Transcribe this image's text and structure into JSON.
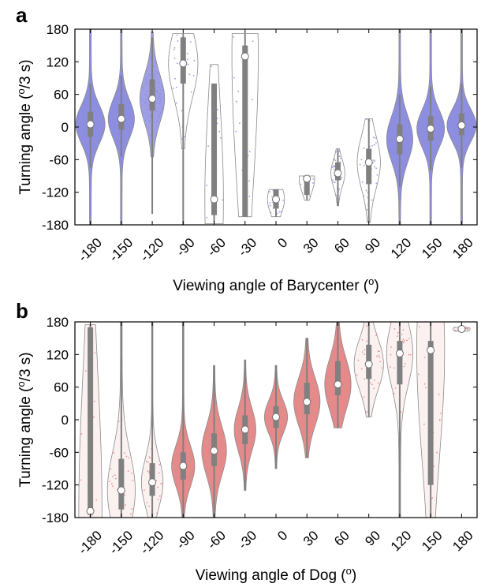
{
  "chart_data": [
    {
      "type": "violin",
      "panel_label": "a",
      "xlabel": "Viewing angle of Barycenter (",
      "xlabel_sup": "o",
      "xlabel_end": ")",
      "ylabel": "Turning angle (",
      "ylabel_sup": "o",
      "ylabel_end": "/3 s)",
      "ylim": [
        -180,
        180
      ],
      "yticks": [
        -180,
        -120,
        -60,
        0,
        60,
        120,
        180
      ],
      "ytick_labels": [
        "-180",
        "-120",
        "-60",
        "0",
        "60",
        "120",
        "180"
      ],
      "categories": [
        "-180",
        "-150",
        "-120",
        "-90",
        "-60",
        "-30",
        "0",
        "30",
        "60",
        "90",
        "120",
        "150",
        "180"
      ],
      "color": "#8e8ee0",
      "groups": [
        {
          "x": "-180",
          "min": -180,
          "max": 180,
          "q1": -18,
          "median": 5,
          "q3": 28,
          "whisker_low": -75,
          "whisker_high": 80,
          "width": 0.95,
          "alpha": 1.0
        },
        {
          "x": "-150",
          "min": -180,
          "max": 180,
          "q1": -5,
          "median": 15,
          "q3": 42,
          "whisker_low": -55,
          "whisker_high": 95,
          "width": 0.85,
          "alpha": 1.0
        },
        {
          "x": "-120",
          "min": -55,
          "max": 175,
          "q1": 30,
          "median": 52,
          "q3": 88,
          "whisker_low": -160,
          "whisker_high": 165,
          "width": 0.8,
          "alpha": 0.85
        },
        {
          "x": "-90",
          "min": -40,
          "max": 172,
          "q1": 80,
          "median": 117,
          "q3": 165,
          "whisker_low": -180,
          "whisker_high": 172,
          "width": 0.95,
          "alpha": 0.0
        },
        {
          "x": "-60",
          "min": -178,
          "max": 115,
          "q1": -162,
          "median": -133,
          "q3": 80,
          "whisker_low": -175,
          "whisker_high": 80,
          "width": 0.6,
          "alpha": 0.0
        },
        {
          "x": "-30",
          "min": -165,
          "max": 172,
          "q1": -165,
          "median": 130,
          "q3": 150,
          "whisker_low": -165,
          "whisker_high": 172,
          "width": 0.85,
          "alpha": 0.0
        },
        {
          "x": "0",
          "min": -165,
          "max": -115,
          "q1": -150,
          "median": -133,
          "q3": -115,
          "whisker_low": -165,
          "whisker_high": -115,
          "width": 0.55,
          "alpha": 0.0
        },
        {
          "x": "30",
          "min": -135,
          "max": -90,
          "q1": -125,
          "median": -95,
          "q3": -92,
          "whisker_low": -135,
          "whisker_high": -90,
          "width": 0.5,
          "alpha": 0.0
        },
        {
          "x": "60",
          "min": -145,
          "max": -40,
          "q1": -98,
          "median": -85,
          "q3": -65,
          "whisker_low": -145,
          "whisker_high": -40,
          "width": 0.45,
          "alpha": 0.0
        },
        {
          "x": "90",
          "min": -175,
          "max": 15,
          "q1": -105,
          "median": -65,
          "q3": -40,
          "whisker_low": -175,
          "whisker_high": 15,
          "width": 0.75,
          "alpha": 0.0
        },
        {
          "x": "120",
          "min": -180,
          "max": 180,
          "q1": -50,
          "median": -22,
          "q3": 5,
          "whisker_low": -110,
          "whisker_high": 60,
          "width": 0.85,
          "alpha": 1.0
        },
        {
          "x": "150",
          "min": -180,
          "max": 180,
          "q1": -25,
          "median": -3,
          "q3": 20,
          "whisker_low": -80,
          "whisker_high": 75,
          "width": 0.9,
          "alpha": 1.0
        },
        {
          "x": "180",
          "min": -180,
          "max": 180,
          "q1": -15,
          "median": 3,
          "q3": 25,
          "whisker_low": -75,
          "whisker_high": 80,
          "width": 0.95,
          "alpha": 1.0
        }
      ]
    },
    {
      "type": "violin",
      "panel_label": "b",
      "xlabel": "Viewing angle of Dog (",
      "xlabel_sup": "o",
      "xlabel_end": ")",
      "ylabel": "Turning angle (",
      "ylabel_sup": "o",
      "ylabel_end": "/3 s)",
      "ylim": [
        -180,
        180
      ],
      "yticks": [
        -180,
        -120,
        -60,
        0,
        60,
        120,
        180
      ],
      "ytick_labels": [
        "-180",
        "-120",
        "-60",
        "0",
        "60",
        "120",
        "180"
      ],
      "categories": [
        "-180",
        "-150",
        "-120",
        "-90",
        "-60",
        "-30",
        "0",
        "30",
        "60",
        "90",
        "120",
        "150",
        "180"
      ],
      "color": "#e58a8a",
      "groups": [
        {
          "x": "-180",
          "min": -180,
          "max": 175,
          "q1": -175,
          "median": -168,
          "q3": 170,
          "whisker_low": -180,
          "whisker_high": 175,
          "width": 0.75,
          "alpha": 0.12
        },
        {
          "x": "-150",
          "min": -180,
          "max": 180,
          "q1": -165,
          "median": -130,
          "q3": -72,
          "whisker_low": -180,
          "whisker_high": 180,
          "width": 0.9,
          "alpha": 0.12
        },
        {
          "x": "-120",
          "min": -180,
          "max": 180,
          "q1": -140,
          "median": -115,
          "q3": -80,
          "whisker_low": -180,
          "whisker_high": 180,
          "width": 0.7,
          "alpha": 0.12
        },
        {
          "x": "-90",
          "min": -180,
          "max": 180,
          "q1": -110,
          "median": -85,
          "q3": -60,
          "whisker_low": -180,
          "whisker_high": 180,
          "width": 0.75,
          "alpha": 1.0
        },
        {
          "x": "-60",
          "min": -180,
          "max": 100,
          "q1": -85,
          "median": -57,
          "q3": -25,
          "whisker_low": -180,
          "whisker_high": 100,
          "width": 0.8,
          "alpha": 1.0
        },
        {
          "x": "-30",
          "min": -130,
          "max": 110,
          "q1": -45,
          "median": -18,
          "q3": 8,
          "whisker_low": -130,
          "whisker_high": 110,
          "width": 0.7,
          "alpha": 1.0
        },
        {
          "x": "0",
          "min": -90,
          "max": 100,
          "q1": -15,
          "median": 5,
          "q3": 25,
          "whisker_low": -90,
          "whisker_high": 100,
          "width": 0.75,
          "alpha": 1.0
        },
        {
          "x": "30",
          "min": -70,
          "max": 150,
          "q1": 10,
          "median": 33,
          "q3": 68,
          "whisker_low": -70,
          "whisker_high": 150,
          "width": 0.85,
          "alpha": 1.0
        },
        {
          "x": "60",
          "min": -15,
          "max": 180,
          "q1": 45,
          "median": 65,
          "q3": 108,
          "whisker_low": -15,
          "whisker_high": 180,
          "width": 0.85,
          "alpha": 1.0
        },
        {
          "x": "90",
          "min": 5,
          "max": 180,
          "q1": 75,
          "median": 102,
          "q3": 138,
          "whisker_low": 5,
          "whisker_high": 180,
          "width": 0.95,
          "alpha": 0.12
        },
        {
          "x": "120",
          "min": -178,
          "max": 180,
          "q1": 65,
          "median": 122,
          "q3": 145,
          "whisker_low": -178,
          "whisker_high": 180,
          "width": 0.85,
          "alpha": 0.12
        },
        {
          "x": "150",
          "min": -180,
          "max": 180,
          "q1": -120,
          "median": 128,
          "q3": 145,
          "whisker_low": -180,
          "whisker_high": 180,
          "width": 0.9,
          "alpha": 0.12
        },
        {
          "x": "180",
          "min": 163,
          "max": 170,
          "q1": 165,
          "median": 167,
          "q3": 168,
          "whisker_low": 163,
          "whisker_high": 170,
          "width": 0.55,
          "alpha": 0.12
        }
      ]
    }
  ]
}
